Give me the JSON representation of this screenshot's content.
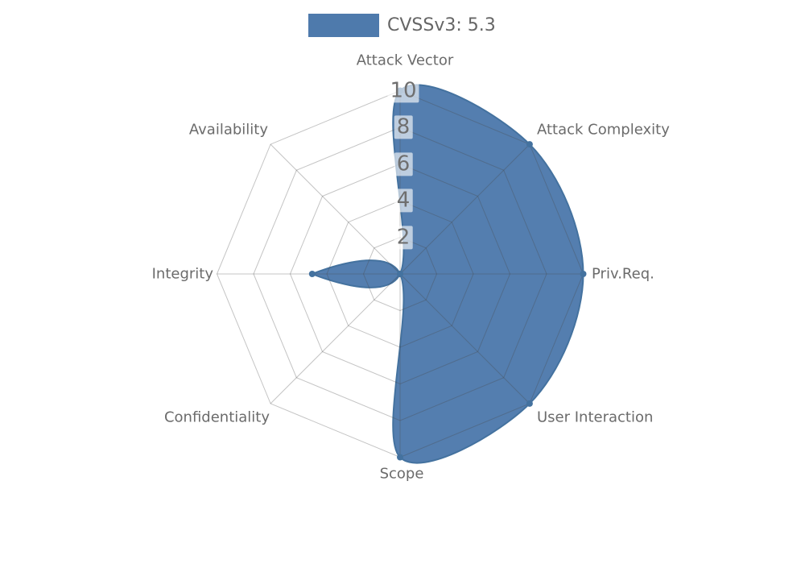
{
  "legend": {
    "label": "CVSSv3: 5.3",
    "swatch_color": "#4e7aac"
  },
  "chart_data": {
    "type": "radar",
    "title": "CVSSv3: 5.3",
    "axes": [
      "Attack Vector",
      "Attack Complexity",
      "Priv.Req.",
      "User Interaction",
      "Scope",
      "Confidentiality",
      "Integrity",
      "Availability"
    ],
    "series": [
      {
        "name": "CVSSv3: 5.3",
        "values": [
          10,
          10,
          10,
          10,
          10,
          0,
          4.8,
          0
        ]
      }
    ],
    "radial_ticks": [
      2,
      4,
      6,
      8,
      10
    ],
    "range": [
      0,
      10
    ],
    "grid_shape": "polygonal",
    "grid_levels": 5,
    "legend_position": "top-center",
    "colors": {
      "area_fill": "#4e7aac",
      "area_stroke": "#44729f",
      "marker": "#44729f",
      "grid_line": "rgba(70,70,70,0.32)",
      "axis_label": "#6b6b6b",
      "tick_text": "#6f6f6f",
      "tick_background": "rgba(255,255,255,0.62)"
    }
  }
}
